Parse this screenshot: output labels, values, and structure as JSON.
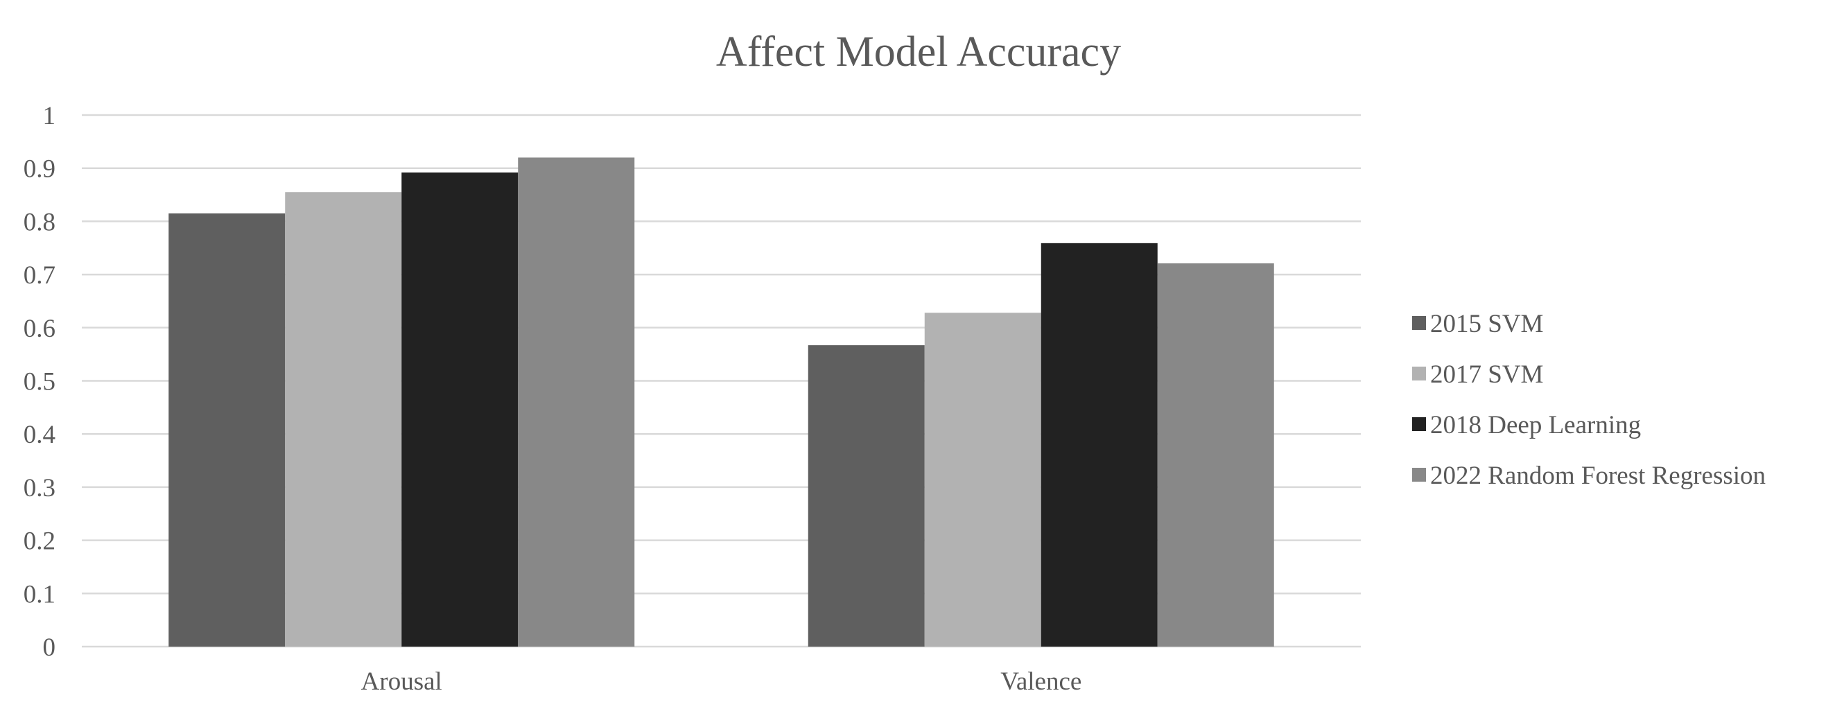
{
  "chart_data": {
    "type": "bar",
    "title": "Affect Model Accuracy",
    "xlabel": "",
    "ylabel": "",
    "categories": [
      "Arousal",
      "Valence"
    ],
    "series": [
      {
        "name": "2015 SVM",
        "values": [
          0.815,
          0.567
        ],
        "color": "#5f5f5f"
      },
      {
        "name": "2017 SVM",
        "values": [
          0.855,
          0.628
        ],
        "color": "#b2b2b2"
      },
      {
        "name": "2018 Deep Learning",
        "values": [
          0.892,
          0.759
        ],
        "color": "#222222"
      },
      {
        "name": "2022 Random Forest Regression",
        "values": [
          0.92,
          0.721
        ],
        "color": "#888888"
      }
    ],
    "ylim": [
      0,
      1
    ],
    "yticks": [
      "0",
      "0.1",
      "0.2",
      "0.3",
      "0.4",
      "0.5",
      "0.6",
      "0.7",
      "0.8",
      "0.9",
      "1"
    ],
    "grid": true,
    "legend_position": "right"
  }
}
